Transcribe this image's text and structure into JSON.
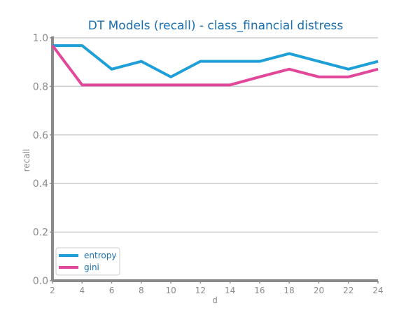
{
  "chart_data": {
    "type": "line",
    "title": "DT Models (recall) - class_financial distress",
    "xlabel": "d",
    "ylabel": "recall",
    "x": [
      2,
      4,
      6,
      8,
      10,
      12,
      14,
      16,
      18,
      20,
      22,
      24
    ],
    "xticks": [
      "2",
      "4",
      "6",
      "8",
      "10",
      "12",
      "14",
      "16",
      "18",
      "20",
      "22",
      "24"
    ],
    "yticks": [
      "0.0",
      "0.2",
      "0.4",
      "0.6",
      "0.8",
      "1.0"
    ],
    "xlim": [
      2,
      24
    ],
    "ylim": [
      0,
      1
    ],
    "grid": "horizontal",
    "legend_position": "lower-left",
    "series": [
      {
        "name": "entropy",
        "color": "#1f9fd7",
        "values": [
          0.968,
          0.968,
          0.871,
          0.903,
          0.839,
          0.903,
          0.903,
          0.903,
          0.935,
          0.903,
          0.871,
          0.903
        ]
      },
      {
        "name": "gini",
        "color": "#e2489a",
        "values": [
          0.968,
          0.806,
          0.806,
          0.806,
          0.806,
          0.806,
          0.806,
          0.839,
          0.871,
          0.839,
          0.839,
          0.871
        ]
      }
    ],
    "colors": {
      "title": "#1a6fae",
      "axis": "#8a8a8a",
      "grid": "#cccccc",
      "legend_text": "#1a6fae"
    }
  }
}
